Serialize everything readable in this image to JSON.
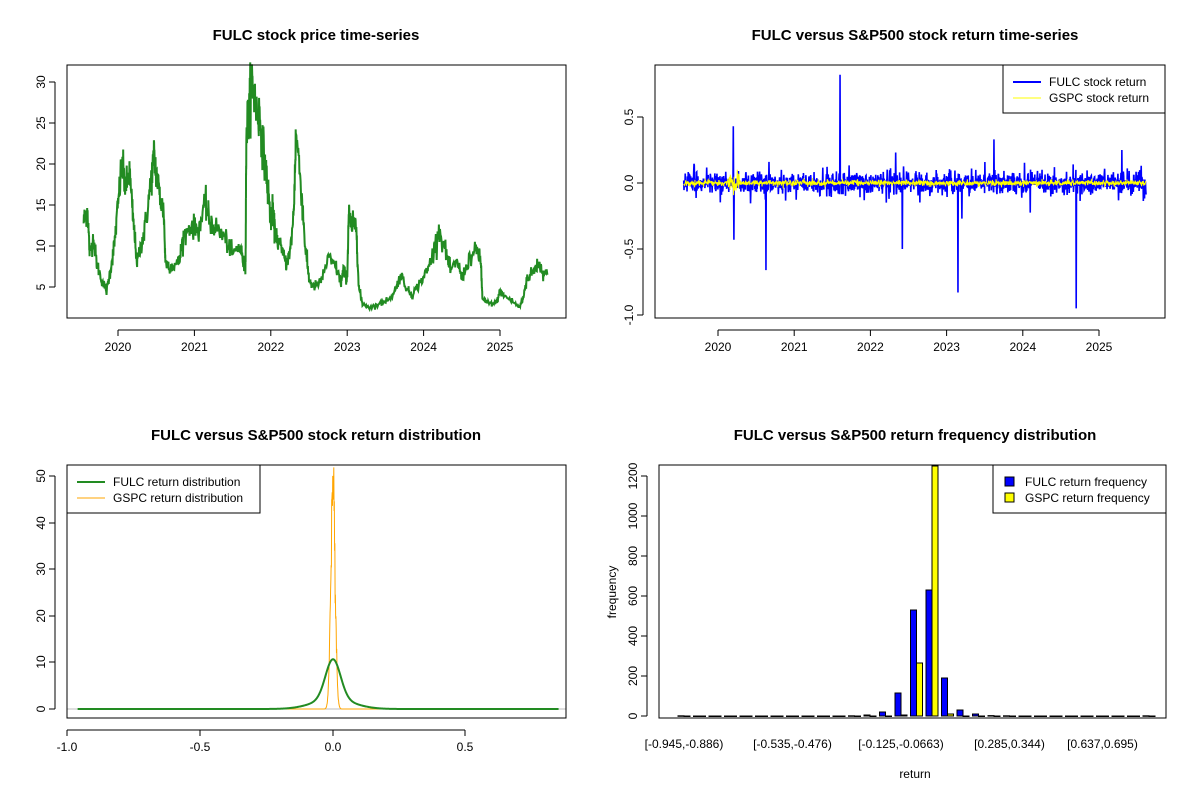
{
  "chart_data": [
    {
      "type": "line",
      "title": "FULC stock price time-series",
      "xlabel": "",
      "ylabel": "",
      "x_ticks": [
        "2020",
        "2021",
        "2022",
        "2023",
        "2024",
        "2025"
      ],
      "y_ticks": [
        "5",
        "10",
        "15",
        "20",
        "25",
        "30"
      ],
      "color": "#228b22",
      "series": [
        {
          "name": "FULC price",
          "x": [
            2019.55,
            2019.6,
            2019.63,
            2019.68,
            2019.72,
            2019.78,
            2019.85,
            2019.9,
            2019.95,
            2020.0,
            2020.05,
            2020.1,
            2020.15,
            2020.2,
            2020.25,
            2020.3,
            2020.35,
            2020.42,
            2020.47,
            2020.5,
            2020.55,
            2020.6,
            2020.62,
            2020.7,
            2020.8,
            2020.85,
            2020.95,
            2021.05,
            2021.15,
            2021.2,
            2021.3,
            2021.4,
            2021.5,
            2021.6,
            2021.65,
            2021.67,
            2021.68,
            2021.72,
            2021.75,
            2021.8,
            2021.85,
            2021.9,
            2021.95,
            2022.0,
            2022.02,
            2022.05,
            2022.12,
            2022.2,
            2022.25,
            2022.3,
            2022.33,
            2022.4,
            2022.45,
            2022.5,
            2022.55,
            2022.65,
            2022.75,
            2022.85,
            2022.92,
            2022.95,
            2023.0,
            2023.02,
            2023.05,
            2023.12,
            2023.15,
            2023.2,
            2023.3,
            2023.45,
            2023.6,
            2023.7,
            2023.8,
            2023.85,
            2023.95,
            2024.05,
            2024.12,
            2024.2,
            2024.3,
            2024.35,
            2024.45,
            2024.5,
            2024.6,
            2024.7,
            2024.75,
            2024.77,
            2024.85,
            2024.95,
            2025.0,
            2025.05,
            2025.2,
            2025.25,
            2025.3,
            2025.35,
            2025.45,
            2025.5,
            2025.55,
            2025.62
          ],
          "y": [
            13,
            14.5,
            9,
            11,
            8,
            6,
            4.5,
            7,
            10,
            15,
            20,
            17,
            19,
            13,
            8,
            10,
            12,
            17,
            21,
            19,
            16,
            14,
            8,
            7.5,
            8,
            11,
            12.5,
            12,
            15,
            13,
            12,
            11,
            9,
            10,
            7.5,
            8,
            24,
            27,
            31,
            27,
            26,
            22,
            18,
            13,
            14.5,
            12,
            10,
            8,
            9,
            14,
            24,
            17,
            10,
            6,
            5,
            5.5,
            8.5,
            7.5,
            5.5,
            7,
            6,
            14,
            12.5,
            12.5,
            5,
            3,
            2.5,
            3,
            4,
            6.5,
            4.5,
            4,
            5.5,
            7,
            9,
            12,
            9,
            7,
            8,
            6,
            8.5,
            9.5,
            8,
            3.5,
            3,
            3,
            4.5,
            4,
            3,
            2.5,
            3.5,
            6,
            7,
            8,
            7,
            6.5
          ]
        }
      ],
      "xlim": [
        2019.5,
        2025.7
      ],
      "ylim": [
        2,
        31
      ]
    },
    {
      "type": "line",
      "title": "FULC versus S&P500 stock return time-series",
      "x_ticks": [
        "2020",
        "2021",
        "2022",
        "2023",
        "2024",
        "2025"
      ],
      "y_ticks": [
        "-1.0",
        "-0.5",
        "0.0",
        "0.5"
      ],
      "legend": {
        "position": "top-right",
        "items": [
          {
            "label": "FULC stock return",
            "color": "#0000ff"
          },
          {
            "label": "GSPC stock return",
            "color": "#ffff00"
          }
        ]
      },
      "series": [
        {
          "name": "FULC stock return",
          "typical_sd": 0.04,
          "spikes": [
            [
              2020.2,
              0.43
            ],
            [
              2020.21,
              -0.43
            ],
            [
              2020.63,
              -0.66
            ],
            [
              2021.6,
              0.82
            ],
            [
              2022.42,
              -0.5
            ],
            [
              2023.15,
              -0.83
            ],
            [
              2023.2,
              -0.27
            ],
            [
              2023.62,
              0.33
            ],
            [
              2024.7,
              -0.95
            ],
            [
              2025.3,
              0.25
            ]
          ]
        },
        {
          "name": "GSPC stock return",
          "typical_sd": 0.011
        }
      ],
      "xlim": [
        2019.5,
        2025.7
      ],
      "ylim": [
        -0.95,
        0.82
      ]
    },
    {
      "type": "line",
      "title": "FULC versus S&P500 stock return distribution",
      "x_ticks": [
        "-1.0",
        "-0.5",
        "0.0",
        "0.5"
      ],
      "y_ticks": [
        "0",
        "10",
        "20",
        "30",
        "40",
        "50"
      ],
      "legend": {
        "position": "top-left",
        "items": [
          {
            "label": "FULC return distribution",
            "color": "#228b22"
          },
          {
            "label": "GSPC return distribution",
            "color": "#ffa500"
          }
        ]
      },
      "series": [
        {
          "name": "FULC return distribution",
          "peak_density": 9.8,
          "peak_x": 0.0
        },
        {
          "name": "GSPC return distribution",
          "peak_density": 49.5,
          "peak_x": 0.0
        }
      ],
      "xlim": [
        -0.97,
        0.85
      ],
      "ylim": [
        0,
        50
      ]
    },
    {
      "type": "bar",
      "title": "FULC versus S&P500 return frequency distribution",
      "xlabel": "return",
      "ylabel": "frequency",
      "x_tick_labels": [
        {
          "bin": 0,
          "label": "[-0.945,-0.886)"
        },
        {
          "bin": 7,
          "label": "[-0.535,-0.476)"
        },
        {
          "bin": 14,
          "label": "[-0.125,-0.0663)"
        },
        {
          "bin": 21,
          "label": "[0.285,0.344)"
        },
        {
          "bin": 27,
          "label": "[0.637,0.695)"
        }
      ],
      "y_ticks": [
        "0",
        "200",
        "400",
        "600",
        "800",
        "1000",
        "1200"
      ],
      "legend": {
        "position": "top-right",
        "items": [
          {
            "label": "FULC return frequency",
            "color": "#0000ff"
          },
          {
            "label": "GSPC return frequency",
            "color": "#ffff00"
          }
        ]
      },
      "series": [
        {
          "name": "FULC return frequency",
          "values": [
            1,
            0,
            0,
            0,
            0,
            0,
            0,
            0,
            0,
            0,
            0,
            1,
            5,
            20,
            115,
            530,
            630,
            190,
            30,
            10,
            2,
            1,
            0,
            0,
            0,
            0,
            0,
            0,
            0,
            0,
            1
          ]
        },
        {
          "name": "GSPC return frequency",
          "values": [
            0,
            0,
            0,
            0,
            0,
            0,
            0,
            0,
            0,
            0,
            0,
            0,
            0,
            0,
            5,
            265,
            1290,
            10,
            0,
            0,
            0,
            0,
            0,
            0,
            0,
            0,
            0,
            0,
            0,
            0,
            0
          ]
        }
      ],
      "ylim": [
        0,
        1250
      ]
    }
  ]
}
